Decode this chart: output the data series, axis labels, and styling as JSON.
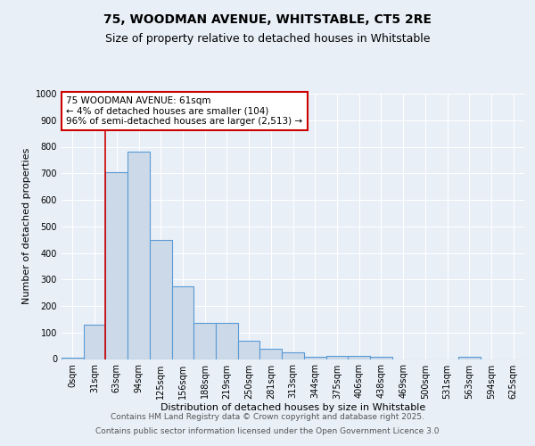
{
  "title_line1": "75, WOODMAN AVENUE, WHITSTABLE, CT5 2RE",
  "title_line2": "Size of property relative to detached houses in Whitstable",
  "xlabel": "Distribution of detached houses by size in Whitstable",
  "ylabel": "Number of detached properties",
  "bin_labels": [
    "0sqm",
    "31sqm",
    "63sqm",
    "94sqm",
    "125sqm",
    "156sqm",
    "188sqm",
    "219sqm",
    "250sqm",
    "281sqm",
    "313sqm",
    "344sqm",
    "375sqm",
    "406sqm",
    "438sqm",
    "469sqm",
    "500sqm",
    "531sqm",
    "563sqm",
    "594sqm",
    "625sqm"
  ],
  "bar_values": [
    5,
    130,
    705,
    780,
    450,
    275,
    135,
    135,
    70,
    40,
    25,
    10,
    12,
    12,
    10,
    0,
    0,
    0,
    8,
    0,
    0
  ],
  "bar_color": "#ccd9e8",
  "bar_edge_color": "#5b9bd5",
  "bar_edge_width": 0.8,
  "red_line_x": 2,
  "red_line_color": "#cc0000",
  "ylim": [
    0,
    1000
  ],
  "yticks": [
    0,
    100,
    200,
    300,
    400,
    500,
    600,
    700,
    800,
    900,
    1000
  ],
  "annotation_text": "75 WOODMAN AVENUE: 61sqm\n← 4% of detached houses are smaller (104)\n96% of semi-detached houses are larger (2,513) →",
  "annotation_box_color": "#ffffff",
  "annotation_box_edge": "#cc0000",
  "footer_line1": "Contains HM Land Registry data © Crown copyright and database right 2025.",
  "footer_line2": "Contains public sector information licensed under the Open Government Licence 3.0",
  "bg_color": "#e8eff7",
  "plot_bg_color": "#e8eff7",
  "grid_color": "#ffffff",
  "title_fontsize": 10,
  "subtitle_fontsize": 9,
  "axis_label_fontsize": 8,
  "tick_fontsize": 7,
  "annotation_fontsize": 7.5,
  "footer_fontsize": 6.5
}
